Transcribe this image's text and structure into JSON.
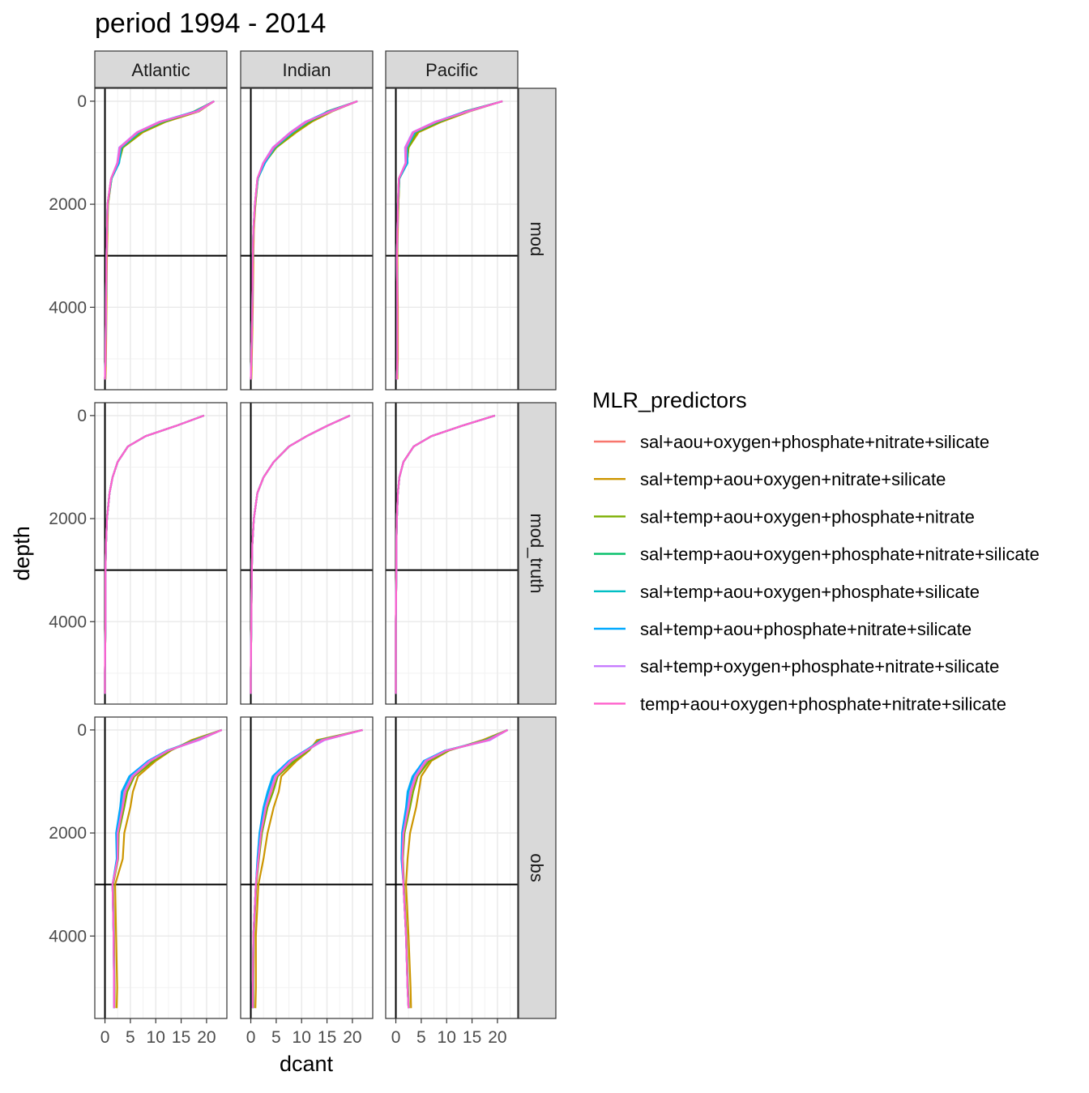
{
  "chart_data": {
    "type": "line",
    "title": "period 1994 - 2014",
    "xlabel": "dcant",
    "ylabel": "depth",
    "xlim": [
      -2,
      24
    ],
    "ylim": [
      5600,
      -250
    ],
    "y_reversed": true,
    "x_ticks": [
      0,
      5,
      10,
      15,
      20
    ],
    "y_ticks": [
      0,
      2000,
      4000
    ],
    "reference_lines": {
      "x": 0,
      "y": 3000
    },
    "grid": true,
    "legend": {
      "title": "MLR_predictors",
      "position": "right"
    },
    "columns": [
      "Atlantic",
      "Indian",
      "Pacific"
    ],
    "rows": [
      "mod",
      "mod_truth",
      "obs"
    ],
    "series": [
      {
        "name": "sal+aou+oxygen+phosphate+nitrate+silicate",
        "color": "#F8766D"
      },
      {
        "name": "sal+temp+aou+oxygen+nitrate+silicate",
        "color": "#CD9600"
      },
      {
        "name": "sal+temp+aou+oxygen+phosphate+nitrate",
        "color": "#7CAE00"
      },
      {
        "name": "sal+temp+aou+oxygen+phosphate+nitrate+silicate",
        "color": "#00BE67"
      },
      {
        "name": "sal+temp+aou+oxygen+phosphate+silicate",
        "color": "#00BFC4"
      },
      {
        "name": "sal+temp+aou+phosphate+nitrate+silicate",
        "color": "#00A9FF"
      },
      {
        "name": "sal+temp+oxygen+phosphate+nitrate+silicate",
        "color": "#C77CFF"
      },
      {
        "name": "temp+aou+oxygen+phosphate+nitrate+silicate",
        "color": "#FF61CC"
      }
    ],
    "depth_levels": [
      0,
      200,
      400,
      600,
      900,
      1200,
      1500,
      2000,
      2500,
      3000,
      4000,
      5000,
      5400
    ],
    "base_profiles": {
      "mod": {
        "Atlantic": [
          21.5,
          18,
          11,
          6.5,
          3,
          2.5,
          1.2,
          0.5,
          0.4,
          0.3,
          0.2,
          0.1,
          0.0
        ],
        "Indian": [
          21,
          15.5,
          11,
          8,
          4.5,
          2.5,
          1.3,
          0.8,
          0.5,
          0.4,
          0.3,
          0.1,
          0.0
        ],
        "Pacific": [
          21,
          14,
          8,
          3.5,
          2,
          2,
          0.6,
          0.4,
          0.3,
          0.2,
          0.3,
          0.3,
          0.2
        ]
      },
      "mod_truth": {
        "Atlantic": [
          19.5,
          14,
          8,
          4.5,
          2.5,
          1.5,
          0.9,
          0.4,
          0.2,
          0.1,
          0.1,
          0.0,
          0.0
        ],
        "Indian": [
          19.5,
          15,
          11,
          7.5,
          4.5,
          2.5,
          1.3,
          0.6,
          0.3,
          0.2,
          0.1,
          0.0,
          0.0
        ],
        "Pacific": [
          19.5,
          13,
          7,
          3.5,
          1.5,
          0.7,
          0.4,
          0.2,
          0.1,
          0.1,
          0.0,
          0.0,
          0.0
        ]
      },
      "obs": {
        "Atlantic": [
          23,
          18,
          12.5,
          9,
          5.5,
          4,
          3.5,
          2.5,
          2.5,
          1.5,
          1.7,
          1.8,
          1.8
        ],
        "Indian": [
          22,
          14,
          11,
          8,
          5,
          4,
          3,
          2,
          1.5,
          1,
          0.5,
          0.4,
          0.4
        ],
        "Pacific": [
          22,
          18,
          10,
          6,
          4,
          3,
          2.5,
          1.5,
          1.3,
          1.5,
          2,
          2.3,
          2.5
        ]
      }
    },
    "series_offsets": {
      "mod": [
        [
          0,
          0,
          0,
          0,
          0,
          0,
          0,
          0,
          0,
          0,
          0,
          0,
          0
        ],
        [
          0,
          0.5,
          1,
          1,
          0.5,
          0.2,
          0.1,
          0.1,
          0.1,
          0.1,
          0.1,
          0.1,
          0.1
        ],
        [
          0,
          -0.5,
          0.8,
          0.7,
          0.5,
          0.2,
          0.1,
          0.1,
          0,
          0,
          0,
          0,
          0
        ],
        [
          0,
          0.2,
          0.3,
          0.2,
          0.2,
          0.1,
          0.1,
          0,
          0,
          0,
          0,
          0,
          0
        ],
        [
          0,
          -0.2,
          0.2,
          0.3,
          0.2,
          0.3,
          0.1,
          0,
          0,
          0,
          0,
          0,
          0
        ],
        [
          0,
          -0.3,
          -0.2,
          0.1,
          0.1,
          0.2,
          0,
          0,
          0,
          0,
          0,
          0,
          0
        ],
        [
          0,
          0.3,
          -0.3,
          -0.2,
          -0.2,
          -0.1,
          0,
          0,
          0,
          0,
          0,
          0,
          0
        ],
        [
          0,
          0,
          0,
          0,
          0,
          0,
          0,
          0,
          0,
          0,
          0,
          0,
          0
        ]
      ],
      "mod_truth": [
        [
          0,
          0,
          0,
          0,
          0,
          0,
          0,
          0,
          0,
          0,
          0,
          0,
          0
        ],
        [
          0,
          0,
          0,
          0,
          0,
          0,
          0,
          0,
          0,
          0,
          0,
          0,
          0
        ],
        [
          0,
          0,
          0,
          0,
          0,
          0,
          0,
          0,
          0,
          0,
          0,
          0,
          0
        ],
        [
          0,
          0,
          0,
          0,
          0,
          0,
          0,
          0,
          0,
          0,
          0,
          0,
          0
        ],
        [
          0,
          0,
          0,
          0,
          0,
          0,
          0,
          0,
          0,
          0,
          0,
          0,
          0
        ],
        [
          0,
          0,
          0,
          0,
          0,
          0,
          0,
          0,
          0,
          0,
          0,
          0,
          0
        ],
        [
          0,
          0,
          0,
          0,
          0,
          0,
          0,
          0,
          0,
          0,
          0,
          0,
          0
        ],
        [
          0,
          0,
          0,
          0,
          0,
          0,
          0,
          0,
          0,
          0,
          0,
          0,
          0
        ]
      ],
      "obs": [
        [
          0,
          0,
          0,
          0,
          0,
          0,
          0,
          0,
          0,
          0,
          0,
          0,
          0
        ],
        [
          0,
          -1,
          0.5,
          1,
          1,
          1.5,
          1.5,
          1.3,
          1,
          0.5,
          0.5,
          0.6,
          0.5
        ],
        [
          0,
          -0.5,
          0.3,
          0.6,
          0.3,
          0.4,
          0.3,
          0.2,
          0.1,
          0.1,
          0.1,
          0.1,
          0.1
        ],
        [
          0,
          0.2,
          0.1,
          0.1,
          0,
          0,
          0,
          0,
          0,
          0,
          0,
          0,
          0
        ],
        [
          0,
          -0.3,
          -0.2,
          -0.3,
          -0.5,
          -0.5,
          -0.4,
          -0.2,
          -0.1,
          0,
          0,
          0,
          0
        ],
        [
          0,
          0.3,
          -0.3,
          -0.5,
          -0.7,
          -0.7,
          -0.5,
          -0.3,
          -0.2,
          0,
          0,
          0,
          0
        ],
        [
          0,
          0.5,
          -0.1,
          -0.2,
          -0.2,
          -0.2,
          -0.1,
          0,
          0,
          0,
          0,
          0,
          0
        ],
        [
          0,
          0,
          0,
          0,
          0,
          0,
          0,
          0,
          0,
          0,
          0,
          0,
          0
        ]
      ]
    }
  }
}
